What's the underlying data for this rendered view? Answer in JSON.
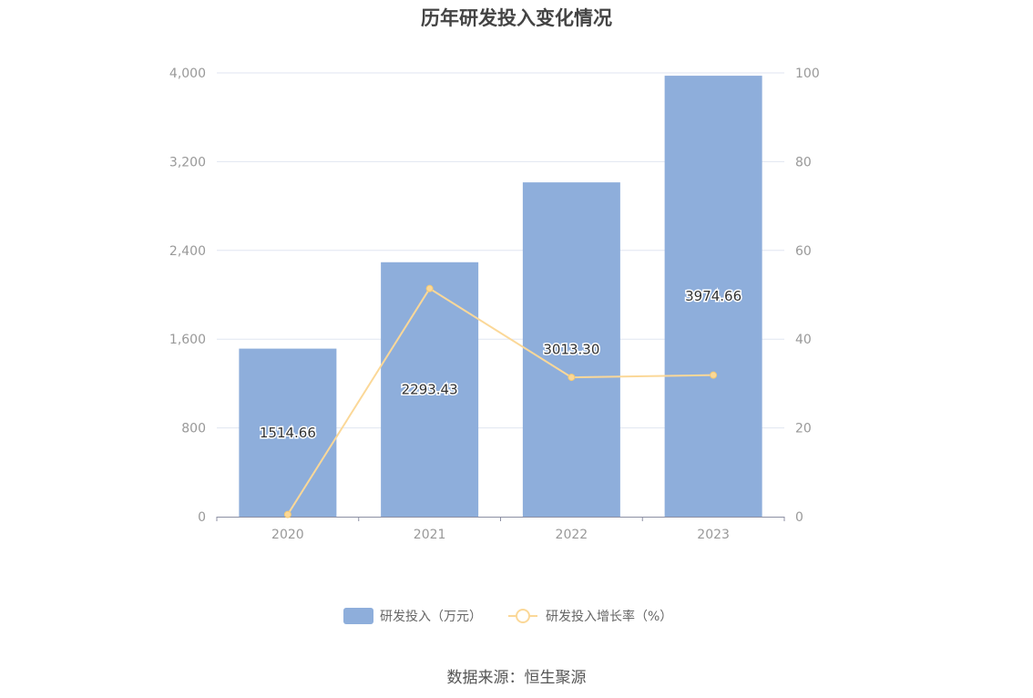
{
  "footer": {
    "source": "数据来源：恒生聚源"
  },
  "colors": {
    "bar": "#8eaedb",
    "line": "#fbd898",
    "grid": "#e0e6f1",
    "axis": "#8c8fa3"
  },
  "chart_data": {
    "type": "bar",
    "title": "历年研发投入变化情况",
    "categories": [
      "2020",
      "2021",
      "2022",
      "2023"
    ],
    "series": [
      {
        "name": "研发投入（万元）",
        "type": "bar",
        "axis": "left",
        "values": [
          1514.66,
          2293.43,
          3013.3,
          3974.66
        ],
        "labels": [
          "1514.66",
          "2293.43",
          "3013.30",
          "3974.66"
        ]
      },
      {
        "name": "研发投入增长率（%）",
        "type": "line",
        "axis": "right",
        "values": [
          0.5,
          51.4,
          31.4,
          31.9
        ]
      }
    ],
    "y_left": {
      "min": 0,
      "max": 4000,
      "ticks": [
        "0",
        "800",
        "1,600",
        "2,400",
        "3,200",
        "4,000"
      ]
    },
    "y_right": {
      "min": 0,
      "max": 100,
      "ticks": [
        "0",
        "20",
        "40",
        "60",
        "80",
        "100"
      ]
    },
    "grid": true,
    "legend": "bottom-center"
  }
}
